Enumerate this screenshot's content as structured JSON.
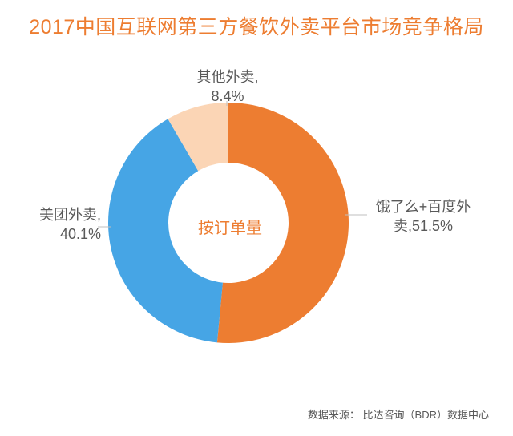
{
  "title": {
    "text": "2017中国互联网第三方餐饮外卖平台市场竞争格局",
    "color": "#ed7d31",
    "fontsize": 25
  },
  "chart": {
    "type": "donut",
    "center_label": "按订单量",
    "center_label_color": "#ed7d31",
    "outer_radius": 150,
    "inner_radius": 75,
    "background": "#ffffff",
    "slices": [
      {
        "name": "饿了么+百度外卖",
        "value": 51.5,
        "color": "#ed7d31",
        "label": "饿了么+百度外\n卖,51.5%"
      },
      {
        "name": "美团外卖",
        "value": 40.1,
        "color": "#46a5e5",
        "label": "美团外卖,\n40.1%"
      },
      {
        "name": "其他外卖",
        "value": 8.4,
        "color": "#fbd5b5",
        "label": "其他外卖,\n8.4%"
      }
    ],
    "label_fontsize": 18,
    "label_color": "#595959",
    "leader_color": "#bfbfbf"
  },
  "source": {
    "prefix": "数据来源： ",
    "text": "比达咨询（BDR）数据中心",
    "color": "#595959",
    "fontsize": 13
  }
}
